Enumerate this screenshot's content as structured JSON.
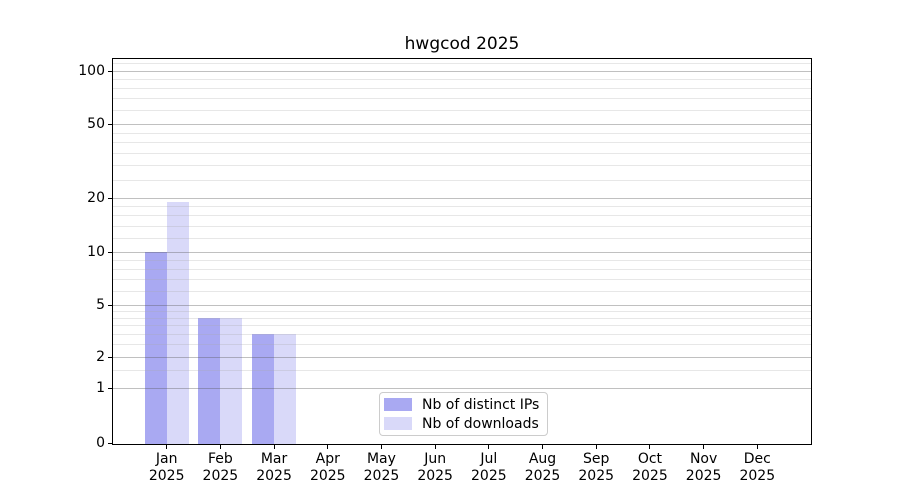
{
  "chart_data": {
    "type": "bar",
    "title": "hwgcod 2025",
    "year": "2025",
    "categories": [
      "Jan",
      "Feb",
      "Mar",
      "Apr",
      "May",
      "Jun",
      "Jul",
      "Aug",
      "Sep",
      "Oct",
      "Nov",
      "Dec"
    ],
    "series": [
      {
        "name": "Nb of distinct IPs",
        "color": "#a9a9f2",
        "values": [
          10,
          4,
          3,
          0,
          0,
          0,
          0,
          0,
          0,
          0,
          0,
          0
        ]
      },
      {
        "name": "Nb of downloads",
        "color": "#d9d9f9",
        "values": [
          19,
          4,
          3,
          0,
          0,
          0,
          0,
          0,
          0,
          0,
          0,
          0
        ]
      }
    ],
    "yscale": "symlog",
    "ylim": [
      0,
      116
    ],
    "yticks": [
      0,
      1,
      2,
      5,
      10,
      20,
      50,
      100
    ],
    "yticks_minor": [
      1.5,
      2.5,
      3,
      3.5,
      4,
      4.5,
      6,
      7,
      8,
      9,
      12,
      14,
      16,
      18,
      25,
      30,
      35,
      40,
      45,
      60,
      70,
      80,
      90,
      110
    ],
    "grid": true,
    "legend_position": "lower center"
  }
}
